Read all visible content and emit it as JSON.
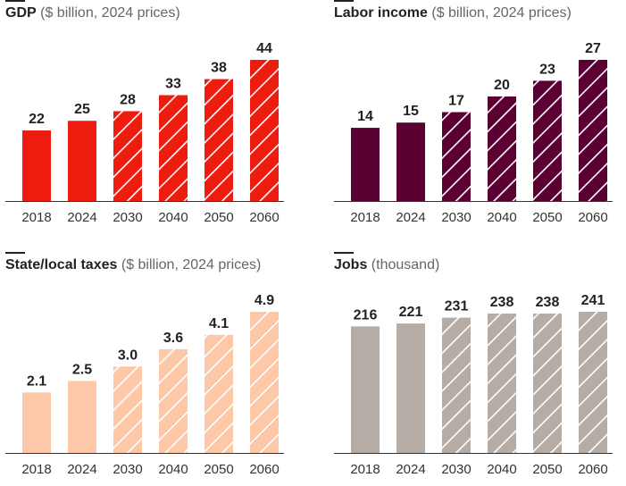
{
  "chart_data": [
    {
      "type": "bar",
      "title": "GDP",
      "subtitle": "($ billion, 2024 prices)",
      "categories": [
        "2018",
        "2024",
        "2030",
        "2040",
        "2050",
        "2060"
      ],
      "values": [
        22,
        25,
        28,
        33,
        38,
        44
      ],
      "value_labels": [
        "22",
        "25",
        "28",
        "33",
        "38",
        "44"
      ],
      "projected_from_index": 2,
      "ylim": [
        0,
        44
      ],
      "color": "#ee1c0e",
      "grid": false
    },
    {
      "type": "bar",
      "title": "Labor income",
      "subtitle": "($ billion, 2024 prices)",
      "categories": [
        "2018",
        "2024",
        "2030",
        "2040",
        "2050",
        "2060"
      ],
      "values": [
        14,
        15,
        17,
        20,
        23,
        27
      ],
      "value_labels": [
        "14",
        "15",
        "17",
        "20",
        "23",
        "27"
      ],
      "projected_from_index": 2,
      "ylim": [
        0,
        27
      ],
      "color": "#5b0032",
      "grid": false
    },
    {
      "type": "bar",
      "title": "State/local taxes",
      "subtitle": "($ billion, 2024 prices)",
      "categories": [
        "2018",
        "2024",
        "2030",
        "2040",
        "2050",
        "2060"
      ],
      "values": [
        2.1,
        2.5,
        3.0,
        3.6,
        4.1,
        4.9
      ],
      "value_labels": [
        "2.1",
        "2.5",
        "3.0",
        "3.6",
        "4.1",
        "4.9"
      ],
      "projected_from_index": 2,
      "ylim": [
        0,
        4.9
      ],
      "color": "#fcc8a8",
      "grid": false
    },
    {
      "type": "bar",
      "title": "Jobs",
      "subtitle": "(thousand)",
      "categories": [
        "2018",
        "2024",
        "2030",
        "2040",
        "2050",
        "2060"
      ],
      "values": [
        216,
        221,
        231,
        238,
        238,
        241
      ],
      "value_labels": [
        "216",
        "221",
        "231",
        "238",
        "238",
        "241"
      ],
      "projected_from_index": 2,
      "ylim": [
        0,
        241
      ],
      "color": "#b5aca5",
      "grid": false
    }
  ]
}
